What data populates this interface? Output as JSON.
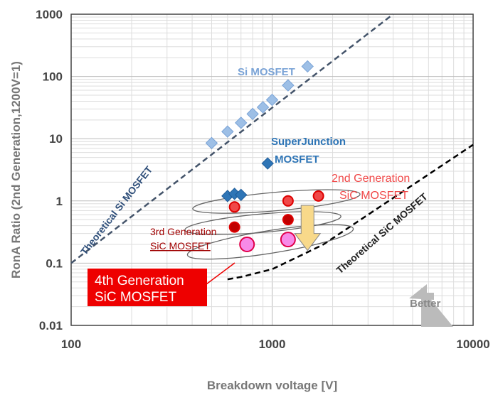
{
  "chart_data": {
    "type": "scatter",
    "title": "",
    "xlabel": "Breakdown voltage [V]",
    "ylabel": "RonA Ratio (2nd Generation,1200V=1)",
    "x_scale": "log",
    "y_scale": "log",
    "xlim": [
      100,
      10000
    ],
    "ylim": [
      0.01,
      1000
    ],
    "x_ticks": [
      "100",
      "1000",
      "10000"
    ],
    "y_ticks": [
      "0.01",
      "0.1",
      "1",
      "10",
      "100",
      "1000"
    ],
    "grid": true,
    "series": [
      {
        "name": "Si MOSFET",
        "marker": "diamond",
        "color": "#9dbfe6",
        "x": [
          500,
          600,
          700,
          800,
          900,
          1000,
          1200,
          1500
        ],
        "y": [
          8.5,
          13,
          18,
          25,
          32,
          42,
          72,
          145
        ]
      },
      {
        "name": "SuperJunction MOSFET",
        "marker": "diamond",
        "color": "#2e75b6",
        "x": [
          600,
          650,
          700,
          950
        ],
        "y": [
          1.2,
          1.3,
          1.25,
          4
        ]
      },
      {
        "name": "2nd Generation SiC MOSFET",
        "marker": "circle",
        "color": "#f04848",
        "x": [
          650,
          1200,
          1700
        ],
        "y": [
          0.8,
          1.0,
          1.2
        ]
      },
      {
        "name": "3rd Generation SiC MOSFET",
        "marker": "circle",
        "color": "#c00000",
        "x": [
          650,
          1200
        ],
        "y": [
          0.38,
          0.5
        ]
      },
      {
        "name": "4th Generation SiC MOSFET",
        "marker": "circle",
        "color": "#f78ae8",
        "x": [
          750,
          1200
        ],
        "y": [
          0.2,
          0.24
        ]
      },
      {
        "name": "Theoretical Si MOSFET",
        "line": "dashed",
        "color": "#44546a",
        "x": [
          100,
          4000
        ],
        "y": [
          0.1,
          1000
        ]
      },
      {
        "name": "Theoretical SiC MOSFET",
        "line": "dashed",
        "color": "#000000",
        "x": [
          600,
          700,
          1000,
          1500,
          1800,
          10000
        ],
        "y": [
          0.055,
          0.06,
          0.08,
          0.15,
          0.2,
          8
        ]
      }
    ],
    "annotations": {
      "si": "Si MOSFET",
      "sj_1": "SuperJunction",
      "sj_2": "MOSFET",
      "gen2_1": "2nd Generation",
      "gen2_2": "SiC MOSFET",
      "gen3_1": "3rd Generation",
      "gen3_2": "SiC MOSFET",
      "gen4_1": "4th Generation",
      "gen4_2": "SiC MOSFET",
      "theo_si": "Theoretical Si MOSFET",
      "theo_sic": "Theoretical SiC MOSFET",
      "better": "Better"
    }
  }
}
